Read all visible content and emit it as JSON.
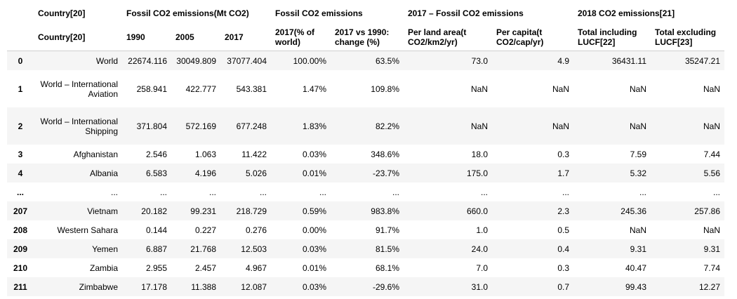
{
  "header": {
    "top": {
      "country": "Country[20]",
      "fossil_mt": "Fossil CO2 emissions(Mt CO2)",
      "fossil": "Fossil CO2 emissions",
      "fossil_2017": "2017 – Fossil CO2 emissions",
      "emissions_2018": "2018 CO2 emissions[21]"
    },
    "sub": {
      "country": "Country[20]",
      "y1990": "1990",
      "y2005": "2005",
      "y2017": "2017",
      "pct_world": "2017(% of world)",
      "change": "2017 vs 1990: change (%)",
      "per_land": "Per land area(t CO2/km2/yr)",
      "per_capita": "Per capita(t CO2/cap/yr)",
      "incl_lucf": "Total including LUCF[22]",
      "excl_lucf": "Total excluding LUCF[23]"
    }
  },
  "rows": [
    {
      "idx": "0",
      "country": "World",
      "y1990": "22674.116",
      "y2005": "30049.809",
      "y2017": "37077.404",
      "pct": "100.00%",
      "chg": "63.5%",
      "land": "73.0",
      "cap": "4.9",
      "incl": "36431.11",
      "excl": "35247.21"
    },
    {
      "idx": "1",
      "country": "World – International Aviation",
      "y1990": "258.941",
      "y2005": "422.777",
      "y2017": "543.381",
      "pct": "1.47%",
      "chg": "109.8%",
      "land": "NaN",
      "cap": "NaN",
      "incl": "NaN",
      "excl": "NaN"
    },
    {
      "idx": "2",
      "country": "World – International Shipping",
      "y1990": "371.804",
      "y2005": "572.169",
      "y2017": "677.248",
      "pct": "1.83%",
      "chg": "82.2%",
      "land": "NaN",
      "cap": "NaN",
      "incl": "NaN",
      "excl": "NaN"
    },
    {
      "idx": "3",
      "country": "Afghanistan",
      "y1990": "2.546",
      "y2005": "1.063",
      "y2017": "11.422",
      "pct": "0.03%",
      "chg": "348.6%",
      "land": "18.0",
      "cap": "0.3",
      "incl": "7.59",
      "excl": "7.44"
    },
    {
      "idx": "4",
      "country": "Albania",
      "y1990": "6.583",
      "y2005": "4.196",
      "y2017": "5.026",
      "pct": "0.01%",
      "chg": "-23.7%",
      "land": "175.0",
      "cap": "1.7",
      "incl": "5.32",
      "excl": "5.56"
    },
    {
      "idx": "...",
      "country": "...",
      "y1990": "...",
      "y2005": "...",
      "y2017": "...",
      "pct": "...",
      "chg": "...",
      "land": "...",
      "cap": "...",
      "incl": "...",
      "excl": "..."
    },
    {
      "idx": "207",
      "country": "Vietnam",
      "y1990": "20.182",
      "y2005": "99.231",
      "y2017": "218.729",
      "pct": "0.59%",
      "chg": "983.8%",
      "land": "660.0",
      "cap": "2.3",
      "incl": "245.36",
      "excl": "257.86"
    },
    {
      "idx": "208",
      "country": "Western Sahara",
      "y1990": "0.144",
      "y2005": "0.227",
      "y2017": "0.276",
      "pct": "0.00%",
      "chg": "91.7%",
      "land": "1.0",
      "cap": "0.5",
      "incl": "NaN",
      "excl": "NaN"
    },
    {
      "idx": "209",
      "country": "Yemen",
      "y1990": "6.887",
      "y2005": "21.768",
      "y2017": "12.503",
      "pct": "0.03%",
      "chg": "81.5%",
      "land": "24.0",
      "cap": "0.4",
      "incl": "9.31",
      "excl": "9.31"
    },
    {
      "idx": "210",
      "country": "Zambia",
      "y1990": "2.955",
      "y2005": "2.457",
      "y2017": "4.967",
      "pct": "0.01%",
      "chg": "68.1%",
      "land": "7.0",
      "cap": "0.3",
      "incl": "40.47",
      "excl": "7.74"
    },
    {
      "idx": "211",
      "country": "Zimbabwe",
      "y1990": "17.178",
      "y2005": "11.388",
      "y2017": "12.087",
      "pct": "0.03%",
      "chg": "-29.6%",
      "land": "31.0",
      "cap": "0.7",
      "incl": "99.43",
      "excl": "12.27"
    }
  ]
}
